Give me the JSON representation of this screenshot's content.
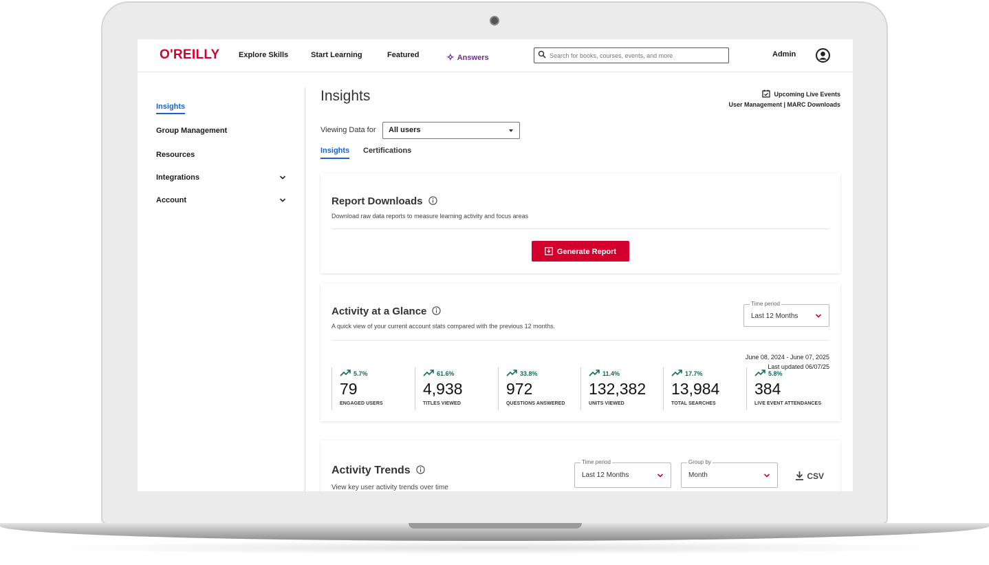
{
  "brand": {
    "logo": "O'REILLY",
    "accent": "#d3002d",
    "link": "#1564d3",
    "trend": "#0e6a5a"
  },
  "topnav": {
    "explore": "Explore Skills",
    "start": "Start Learning",
    "featured": "Featured",
    "answers": "Answers",
    "search_placeholder": "Search for books, courses, events, and more",
    "admin": "Admin"
  },
  "sidebar": {
    "items": [
      {
        "label": "Insights"
      },
      {
        "label": "Group Management"
      },
      {
        "label": "Resources"
      },
      {
        "label": "Integrations"
      },
      {
        "label": "Account"
      }
    ]
  },
  "page": {
    "title": "Insights",
    "upcoming": "Upcoming Live Events",
    "user_mgmt": "User Management | MARC Downloads",
    "viewing_label": "Viewing Data for",
    "viewing_value": "All users",
    "tabs": [
      "Insights",
      "Certifications"
    ]
  },
  "report": {
    "title": "Report Downloads",
    "desc": "Download raw data reports to measure learning activity and focus areas",
    "button": "Generate Report"
  },
  "glance": {
    "title": "Activity at a Glance",
    "desc": "A quick view of your current account stats compared with the previous 12 months.",
    "time_label": "Time period",
    "time_value": "Last 12 Months",
    "range": "June 08, 2024 - June 07, 2025",
    "updated": "Last updated 06/07/25",
    "stats": [
      {
        "trend": "5.7%",
        "value": "79",
        "label": "ENGAGED USERS"
      },
      {
        "trend": "61.6%",
        "value": "4,938",
        "label": "TITLES VIEWED"
      },
      {
        "trend": "33.8%",
        "value": "972",
        "label": "QUESTIONS ANSWERED"
      },
      {
        "trend": "11.4%",
        "value": "132,382",
        "label": "UNITS VIEWED"
      },
      {
        "trend": "17.7%",
        "value": "13,984",
        "label": "TOTAL SEARCHES"
      },
      {
        "trend": "5.8%",
        "value": "384",
        "label": "LIVE EVENT ATTENDANCES"
      }
    ]
  },
  "trends": {
    "title": "Activity Trends",
    "desc": "View key user activity trends over time",
    "time_label": "Time period",
    "time_value": "Last 12 Months",
    "group_label": "Group by",
    "group_value": "Month",
    "csv": "CSV"
  }
}
